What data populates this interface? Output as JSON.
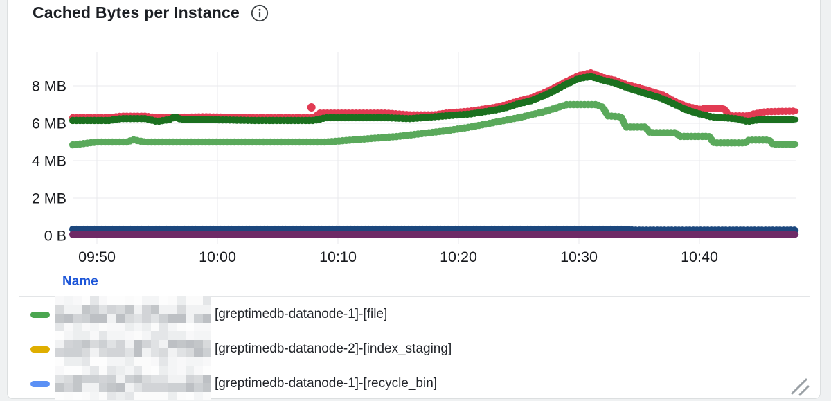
{
  "panel": {
    "title": "Cached Bytes per Instance",
    "info_icon": "info-circle"
  },
  "chart_data": {
    "type": "line",
    "title": "Cached Bytes per Instance",
    "style": "dotted-step-lines",
    "grid": true,
    "x_axis": {
      "ticks": [
        "09:50",
        "10:00",
        "10:10",
        "10:20",
        "10:30",
        "10:40"
      ],
      "tick_minutes": [
        0,
        10,
        20,
        30,
        40,
        50
      ],
      "range_minutes": [
        -2,
        58
      ]
    },
    "y_axis": {
      "ticks": [
        "8 MB",
        "6 MB",
        "4 MB",
        "2 MB",
        "0 B"
      ],
      "tick_values_mb": [
        8,
        6,
        4,
        2,
        0
      ],
      "range_mb": [
        0,
        9.7
      ]
    },
    "series": [
      {
        "name": "crimson-series",
        "color": "#e23b53",
        "points": [
          [
            -2,
            6.3
          ],
          [
            1,
            6.3
          ],
          [
            2,
            6.38
          ],
          [
            4,
            6.38
          ],
          [
            5,
            6.3
          ],
          [
            9,
            6.35
          ],
          [
            13,
            6.3
          ],
          [
            18,
            6.3
          ],
          [
            18.5,
            6.55
          ],
          [
            24,
            6.55
          ],
          [
            26,
            6.45
          ],
          [
            28,
            6.45
          ],
          [
            29,
            6.55
          ],
          [
            31,
            6.65
          ],
          [
            33,
            6.85
          ],
          [
            34,
            7.0
          ],
          [
            35,
            7.2
          ],
          [
            36,
            7.35
          ],
          [
            37,
            7.6
          ],
          [
            38,
            7.9
          ],
          [
            39,
            8.25
          ],
          [
            40,
            8.55
          ],
          [
            41,
            8.7
          ],
          [
            42,
            8.45
          ],
          [
            43,
            8.3
          ],
          [
            44,
            8.05
          ],
          [
            45,
            7.9
          ],
          [
            46,
            7.7
          ],
          [
            47,
            7.5
          ],
          [
            48,
            7.15
          ],
          [
            49,
            6.9
          ],
          [
            50,
            6.75
          ],
          [
            50.5,
            6.8
          ],
          [
            52,
            6.8
          ],
          [
            52.5,
            6.4
          ],
          [
            54,
            6.4
          ],
          [
            54.5,
            6.5
          ],
          [
            55.5,
            6.62
          ],
          [
            58,
            6.65
          ]
        ]
      },
      {
        "name": "dark-green-series",
        "color": "#1b701f",
        "points": [
          [
            -2,
            6.15
          ],
          [
            1,
            6.15
          ],
          [
            2,
            6.25
          ],
          [
            4,
            6.25
          ],
          [
            5,
            6.1
          ],
          [
            6,
            6.2
          ],
          [
            6.5,
            6.35
          ],
          [
            7,
            6.2
          ],
          [
            9,
            6.2
          ],
          [
            13,
            6.15
          ],
          [
            18,
            6.15
          ],
          [
            19,
            6.3
          ],
          [
            24,
            6.3
          ],
          [
            26,
            6.25
          ],
          [
            29,
            6.4
          ],
          [
            31,
            6.5
          ],
          [
            33,
            6.7
          ],
          [
            34,
            6.85
          ],
          [
            35,
            7.05
          ],
          [
            36,
            7.2
          ],
          [
            37,
            7.45
          ],
          [
            38,
            7.75
          ],
          [
            39,
            8.1
          ],
          [
            40,
            8.4
          ],
          [
            41,
            8.5
          ],
          [
            42,
            8.3
          ],
          [
            43,
            8.15
          ],
          [
            44,
            7.9
          ],
          [
            45,
            7.7
          ],
          [
            46,
            7.5
          ],
          [
            47,
            7.3
          ],
          [
            48,
            7.0
          ],
          [
            49,
            6.7
          ],
          [
            50,
            6.5
          ],
          [
            51,
            6.35
          ],
          [
            52,
            6.3
          ],
          [
            53,
            6.25
          ],
          [
            54,
            6.1
          ],
          [
            55,
            6.2
          ],
          [
            58,
            6.2
          ]
        ]
      },
      {
        "name": "light-green-series",
        "color": "#5aa95b",
        "points": [
          [
            -2,
            4.85
          ],
          [
            0,
            5.0
          ],
          [
            2.5,
            5.0
          ],
          [
            3,
            5.12
          ],
          [
            4,
            5.0
          ],
          [
            19,
            5.0
          ],
          [
            20,
            5.05
          ],
          [
            21,
            5.1
          ],
          [
            23,
            5.2
          ],
          [
            25,
            5.3
          ],
          [
            27,
            5.45
          ],
          [
            29,
            5.6
          ],
          [
            31,
            5.8
          ],
          [
            33,
            6.05
          ],
          [
            35,
            6.3
          ],
          [
            36,
            6.45
          ],
          [
            37,
            6.6
          ],
          [
            38,
            6.8
          ],
          [
            39,
            7.0
          ],
          [
            41.5,
            7.0
          ],
          [
            42,
            6.85
          ],
          [
            42.4,
            6.4
          ],
          [
            43.5,
            6.35
          ],
          [
            43.9,
            5.8
          ],
          [
            45.5,
            5.8
          ],
          [
            45.9,
            5.5
          ],
          [
            48,
            5.5
          ],
          [
            48.4,
            5.3
          ],
          [
            50.8,
            5.3
          ],
          [
            51.2,
            4.95
          ],
          [
            53.8,
            4.95
          ],
          [
            54.1,
            5.1
          ],
          [
            55.8,
            5.1
          ],
          [
            56.1,
            4.88
          ],
          [
            58,
            4.88
          ]
        ]
      },
      {
        "name": "navy-series",
        "color": "#1c477d",
        "points": [
          [
            -2,
            0.33
          ],
          [
            44,
            0.33
          ],
          [
            44.5,
            0.28
          ],
          [
            58,
            0.28
          ]
        ]
      },
      {
        "name": "purple-series",
        "color": "#6e2a66",
        "points": [
          [
            -2,
            0.05
          ],
          [
            58,
            0.05
          ]
        ]
      }
    ],
    "outlier_point": {
      "series": "crimson-series",
      "t": 17.8,
      "mb": 6.85,
      "color": "#e23b53"
    }
  },
  "legend": {
    "header": "Name",
    "rows": [
      {
        "color": "#4aa64f",
        "redacted_prefix": true,
        "label": "[greptimedb-datanode-1]-[file]"
      },
      {
        "color": "#dfae00",
        "redacted_prefix": true,
        "label": "[greptimedb-datanode-2]-[index_staging]"
      },
      {
        "color": "#5b90f5",
        "redacted_prefix": true,
        "label": "[greptimedb-datanode-1]-[recycle_bin]"
      }
    ]
  },
  "colors": {
    "grid": "#e8eaec",
    "axis_text": "#17191d",
    "legend_header": "#1d56d8",
    "card_border": "#dcdfe0"
  }
}
